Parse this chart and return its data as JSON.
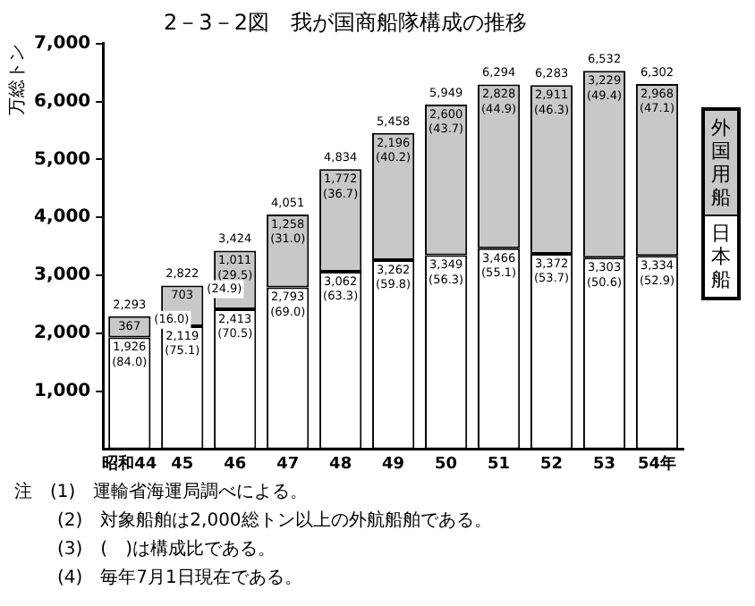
{
  "chart_data": {
    "type": "bar",
    "title": "2－3－2図　我が国商船隊構成の推移",
    "ylabel": "万総トン",
    "categories": [
      "昭和44",
      "45",
      "46",
      "47",
      "48",
      "49",
      "50",
      "51",
      "52",
      "53",
      "54年"
    ],
    "stacked": true,
    "legend": "right",
    "grid": false,
    "ylim": [
      0,
      7000
    ],
    "yticks": [
      {
        "value": 1000,
        "label": "1,000"
      },
      {
        "value": 2000,
        "label": "2,000"
      },
      {
        "value": 3000,
        "label": "3,000"
      },
      {
        "value": 4000,
        "label": "4,000"
      },
      {
        "value": 5000,
        "label": "5,000"
      },
      {
        "value": 6000,
        "label": "6,000"
      },
      {
        "value": 7000,
        "label": "7,000"
      }
    ],
    "series": [
      {
        "name": "日本船",
        "color": "#ffffff",
        "values": [
          1926,
          2119,
          2413,
          2793,
          3062,
          3262,
          3349,
          3466,
          3372,
          3303,
          3334
        ],
        "value_labels": [
          "1,926",
          "2,119",
          "2,413",
          "2,793",
          "3,062",
          "3,262",
          "3,349",
          "3,466",
          "3,372",
          "3,303",
          "3,334"
        ]
      },
      {
        "name": "外国用船",
        "color": "#c8c8c8",
        "values": [
          367,
          703,
          1011,
          1258,
          1772,
          2196,
          2600,
          2828,
          2911,
          3229,
          2968
        ],
        "value_labels": [
          "367",
          "703",
          "1,011",
          "1,258",
          "1,772",
          "2,196",
          "2,600",
          "2,828",
          "2,911",
          "3,229",
          "2,968"
        ]
      }
    ],
    "totals": [
      "2,293",
      "2,822",
      "3,424",
      "4,051",
      "4,834",
      "5,458",
      "5,949",
      "6,294",
      "6,283",
      "6,532",
      "6,302"
    ],
    "annotations": [
      {
        "text": "(84.0)",
        "x": "昭和44",
        "y": 1926
      },
      {
        "text": "(75.1)",
        "x": "45",
        "y": 2119
      },
      {
        "text": "(70.5)",
        "x": "46",
        "y": 2413
      },
      {
        "text": "(69.0)",
        "x": "47",
        "y": 2793
      },
      {
        "text": "(63.3)",
        "x": "48",
        "y": 3062
      },
      {
        "text": "(59.8)",
        "x": "49",
        "y": 3262
      },
      {
        "text": "(56.3)",
        "x": "50",
        "y": 3349
      },
      {
        "text": "(55.1)",
        "x": "51",
        "y": 3466
      },
      {
        "text": "(53.7)",
        "x": "52",
        "y": 3372
      },
      {
        "text": "(50.6)",
        "x": "53",
        "y": 3303
      },
      {
        "text": "(52.9)",
        "x": "54年",
        "y": 3334
      },
      {
        "text": "(16.0)",
        "x": "昭和44",
        "y": 2293
      },
      {
        "text": "(24.9)",
        "x": "45",
        "y": 2822
      },
      {
        "text": "(29.5)",
        "x": "46",
        "y": 3424
      },
      {
        "text": "(31.0)",
        "x": "47",
        "y": 4051
      },
      {
        "text": "(36.7)",
        "x": "48",
        "y": 4834
      },
      {
        "text": "(40.2)",
        "x": "49",
        "y": 5458
      },
      {
        "text": "(43.7)",
        "x": "50",
        "y": 5949
      },
      {
        "text": "(44.9)",
        "x": "51",
        "y": 6294
      },
      {
        "text": "(46.3)",
        "x": "52",
        "y": 6283
      },
      {
        "text": "(49.4)",
        "x": "53",
        "y": 6532
      },
      {
        "text": "(47.1)",
        "x": "54年",
        "y": 6302
      },
      "注　(1)　運輸省海運局調べによる。",
      "(2)　対象船舶は2,000総トン以上の外航船舶である。",
      "(3)　(　)は構成比である。",
      "(4)　毎年7月1日現在である。"
    ]
  }
}
